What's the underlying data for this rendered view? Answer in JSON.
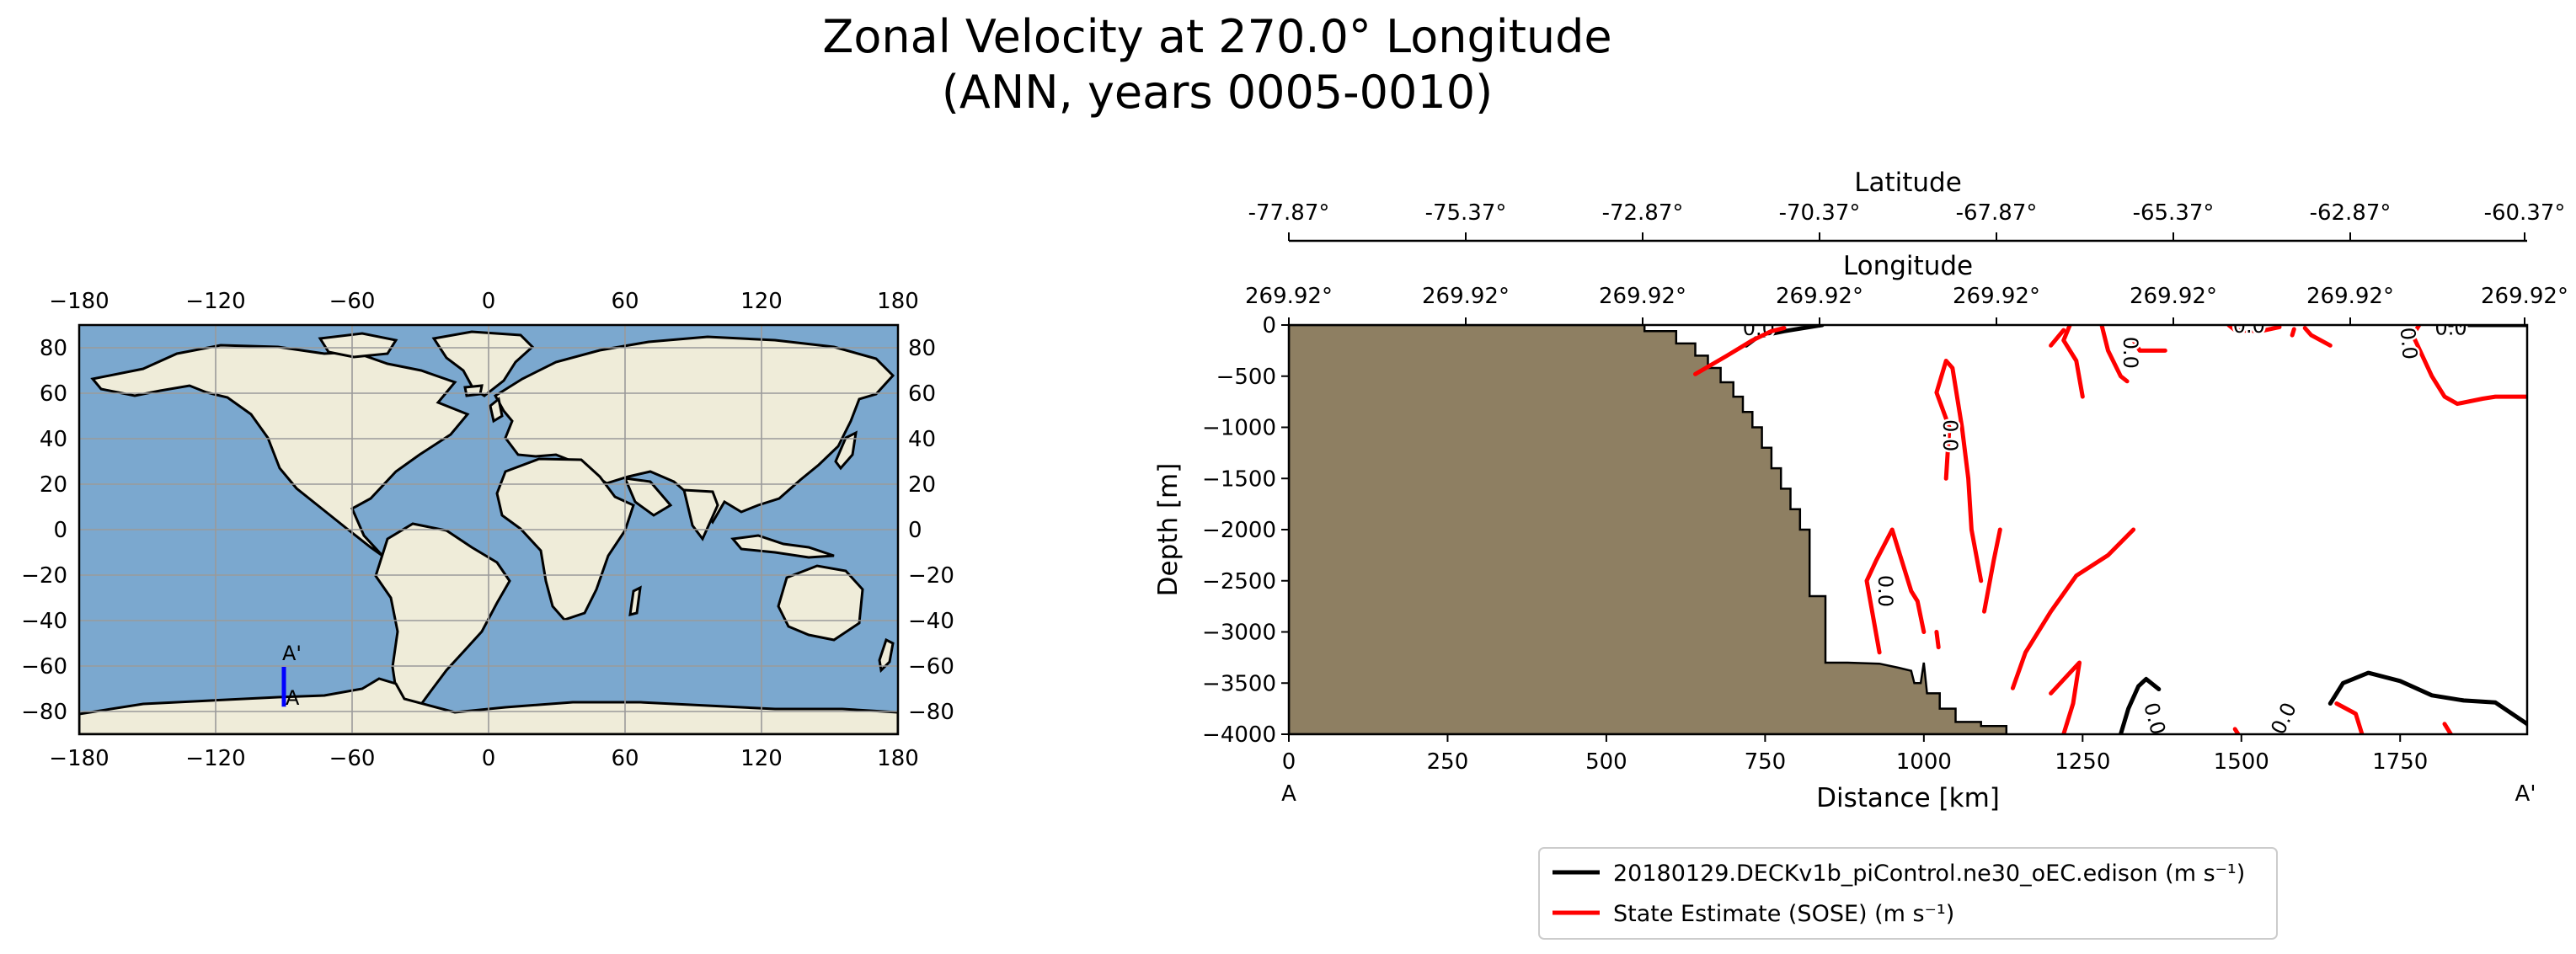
{
  "title": {
    "line1": "Zonal Velocity at 270.0° Longitude",
    "line2": "(ANN, years 0005-0010)"
  },
  "colors": {
    "ocean": "#7ba8cf",
    "land": "#efecd9",
    "section_land": "#8e7f62",
    "model": "#000000",
    "obs": "#ff0000",
    "transect": "#0000ff"
  },
  "chart_data": [
    {
      "type": "map",
      "projection": "plate-carree",
      "xlim": [
        -180,
        180
      ],
      "ylim": [
        -90,
        90
      ],
      "xticks": [
        "−180",
        "−120",
        "−60",
        "0",
        "60",
        "120",
        "180"
      ],
      "yticks": [
        "80",
        "60",
        "40",
        "20",
        "0",
        "−20",
        "−40",
        "−60",
        "−80"
      ],
      "grid": true,
      "transect": {
        "lon": -90,
        "lat_start": -77.87,
        "lat_end": -60.37,
        "label_start": "A",
        "label_end": "A'"
      }
    },
    {
      "type": "line",
      "subtype": "contour-section",
      "xlabel": "Distance [km]",
      "ylabel": "Depth [m]",
      "xlim": [
        0,
        1950
      ],
      "ylim": [
        -4000,
        0
      ],
      "xticks": [
        "0",
        "250",
        "500",
        "750",
        "1000",
        "1250",
        "1500",
        "1750"
      ],
      "yticks": [
        "0",
        "−500",
        "−1000",
        "−1500",
        "−2000",
        "−2500",
        "−3000",
        "−3500",
        "−4000"
      ],
      "endpoint_labels": [
        "A",
        "A'"
      ],
      "top_axes": [
        {
          "label": "Latitude",
          "ticks": [
            "-77.87°",
            "-75.37°",
            "-72.87°",
            "-70.37°",
            "-67.87°",
            "-65.37°",
            "-62.87°",
            "-60.37°"
          ]
        },
        {
          "label": "Longitude",
          "ticks": [
            "269.92°",
            "269.92°",
            "269.92°",
            "269.92°",
            "269.92°",
            "269.92°",
            "269.92°",
            "269.92°"
          ]
        }
      ],
      "bathymetry": [
        [
          0,
          0
        ],
        [
          560,
          0
        ],
        [
          560,
          -60
        ],
        [
          610,
          -60
        ],
        [
          610,
          -180
        ],
        [
          640,
          -180
        ],
        [
          640,
          -300
        ],
        [
          660,
          -300
        ],
        [
          660,
          -420
        ],
        [
          680,
          -420
        ],
        [
          680,
          -560
        ],
        [
          700,
          -560
        ],
        [
          700,
          -700
        ],
        [
          715,
          -700
        ],
        [
          715,
          -850
        ],
        [
          730,
          -850
        ],
        [
          730,
          -1000
        ],
        [
          745,
          -1000
        ],
        [
          745,
          -1200
        ],
        [
          760,
          -1200
        ],
        [
          760,
          -1400
        ],
        [
          775,
          -1400
        ],
        [
          775,
          -1600
        ],
        [
          790,
          -1600
        ],
        [
          790,
          -1800
        ],
        [
          805,
          -1800
        ],
        [
          805,
          -2000
        ],
        [
          820,
          -2000
        ],
        [
          820,
          -2650
        ],
        [
          845,
          -2650
        ],
        [
          845,
          -3300
        ],
        [
          880,
          -3300
        ],
        [
          930,
          -3310
        ],
        [
          960,
          -3350
        ],
        [
          980,
          -3380
        ],
        [
          985,
          -3500
        ],
        [
          995,
          -3500
        ],
        [
          1000,
          -3300
        ],
        [
          1005,
          -3600
        ],
        [
          1025,
          -3600
        ],
        [
          1025,
          -3750
        ],
        [
          1050,
          -3750
        ],
        [
          1050,
          -3880
        ],
        [
          1090,
          -3880
        ],
        [
          1090,
          -3920
        ],
        [
          1130,
          -3920
        ],
        [
          1130,
          -4000
        ],
        [
          0,
          -4000
        ]
      ],
      "series": [
        {
          "name": "20180129.DECKv1b_piControl.ne30_oEC.edison (m s⁻¹)",
          "color": "#000000",
          "contour_level": "0.0",
          "segments": [
            [
              [
                720,
                -200
              ],
              [
                740,
                -110
              ],
              [
                780,
                -60
              ],
              [
                820,
                -20
              ],
              [
                840,
                0
              ]
            ],
            [
              [
                1310,
                -4000
              ],
              [
                1322,
                -3750
              ],
              [
                1338,
                -3530
              ],
              [
                1350,
                -3460
              ],
              [
                1370,
                -3560
              ]
            ],
            [
              [
                1640,
                -3700
              ],
              [
                1660,
                -3500
              ],
              [
                1700,
                -3400
              ],
              [
                1750,
                -3480
              ],
              [
                1800,
                -3620
              ],
              [
                1850,
                -3670
              ],
              [
                1900,
                -3690
              ],
              [
                1950,
                -3900
              ],
              [
                1960,
                -4000
              ]
            ],
            [
              [
                1820,
                0
              ],
              [
                1950,
                0
              ]
            ]
          ],
          "labels": [
            {
              "x": 1362,
              "y": -3850,
              "rot": 75
            },
            {
              "x": 1568,
              "y": -3850,
              "rot": -65
            },
            {
              "x": 1830,
              "y": -35,
              "rot": 0
            },
            {
              "x": 740,
              "y": -40,
              "rot": 0
            }
          ]
        },
        {
          "name": "State Estimate (SOSE) (m s⁻¹)",
          "color": "#ff0000",
          "contour_level": "0.0",
          "segments": [
            [
              [
                640,
                -480
              ],
              [
                690,
                -300
              ],
              [
                730,
                -150
              ],
              [
                760,
                -60
              ],
              [
                780,
                -30
              ]
            ],
            [
              [
                1035,
                -1500
              ],
              [
                1040,
                -1000
              ],
              [
                1020,
                -660
              ],
              [
                1035,
                -350
              ],
              [
                1045,
                -420
              ],
              [
                1060,
                -1000
              ],
              [
                1070,
                -1500
              ],
              [
                1075,
                -2000
              ],
              [
                1090,
                -2500
              ]
            ],
            [
              [
                930,
                -3200
              ],
              [
                910,
                -2500
              ],
              [
                925,
                -2300
              ],
              [
                950,
                -2000
              ],
              [
                965,
                -2300
              ],
              [
                980,
                -2600
              ],
              [
                990,
                -2700
              ],
              [
                1000,
                -3000
              ]
            ],
            [
              [
                1120,
                -2000
              ],
              [
                1110,
                -2300
              ],
              [
                1095,
                -2800
              ]
            ],
            [
              [
                1140,
                -3550
              ],
              [
                1160,
                -3200
              ],
              [
                1200,
                -2800
              ],
              [
                1240,
                -2450
              ],
              [
                1290,
                -2250
              ],
              [
                1330,
                -2000
              ]
            ],
            [
              [
                1200,
                -3600
              ],
              [
                1230,
                -3400
              ],
              [
                1245,
                -3300
              ],
              [
                1235,
                -3700
              ],
              [
                1220,
                -4000
              ]
            ],
            [
              [
                1230,
                0
              ],
              [
                1220,
                -150
              ],
              [
                1240,
                -350
              ],
              [
                1250,
                -700
              ]
            ],
            [
              [
                1220,
                -50
              ],
              [
                1200,
                -200
              ]
            ],
            [
              [
                1280,
                0
              ],
              [
                1290,
                -250
              ],
              [
                1310,
                -500
              ],
              [
                1320,
                -550
              ]
            ],
            [
              [
                1330,
                -150
              ],
              [
                1340,
                -250
              ],
              [
                1380,
                -250
              ]
            ],
            [
              [
                1480,
                0
              ],
              [
                1490,
                -50
              ],
              [
                1530,
                -60
              ],
              [
                1560,
                -20
              ]
            ],
            [
              [
                1600,
                -30
              ],
              [
                1610,
                -100
              ],
              [
                1640,
                -200
              ]
            ],
            [
              [
                1780,
                0
              ],
              [
                1770,
                -100
              ],
              [
                1800,
                -500
              ],
              [
                1820,
                -700
              ],
              [
                1840,
                -770
              ],
              [
                1880,
                -720
              ],
              [
                1900,
                -700
              ],
              [
                1950,
                -700
              ]
            ],
            [
              [
                1650,
                -3700
              ],
              [
                1680,
                -3800
              ],
              [
                1690,
                -4000
              ]
            ],
            [
              [
                1820,
                -3900
              ],
              [
                1830,
                -4000
              ]
            ],
            [
              [
                1490,
                -3950
              ],
              [
                1495,
                -4000
              ]
            ],
            [
              [
                1580,
                -100
              ],
              [
                1583,
                -40
              ]
            ],
            [
              [
                1020,
                -3000
              ],
              [
                1023,
                -3150
              ]
            ]
          ],
          "labels": [
            {
              "x": 1040,
              "y": -1080,
              "rot": 90
            },
            {
              "x": 938,
              "y": -2600,
              "rot": 90
            },
            {
              "x": 1324,
              "y": -270,
              "rot": 90
            },
            {
              "x": 1512,
              "y": -15,
              "rot": 0
            },
            {
              "x": 1762,
              "y": -180,
              "rot": 85
            }
          ]
        }
      ],
      "legend": "bottom-center"
    }
  ]
}
